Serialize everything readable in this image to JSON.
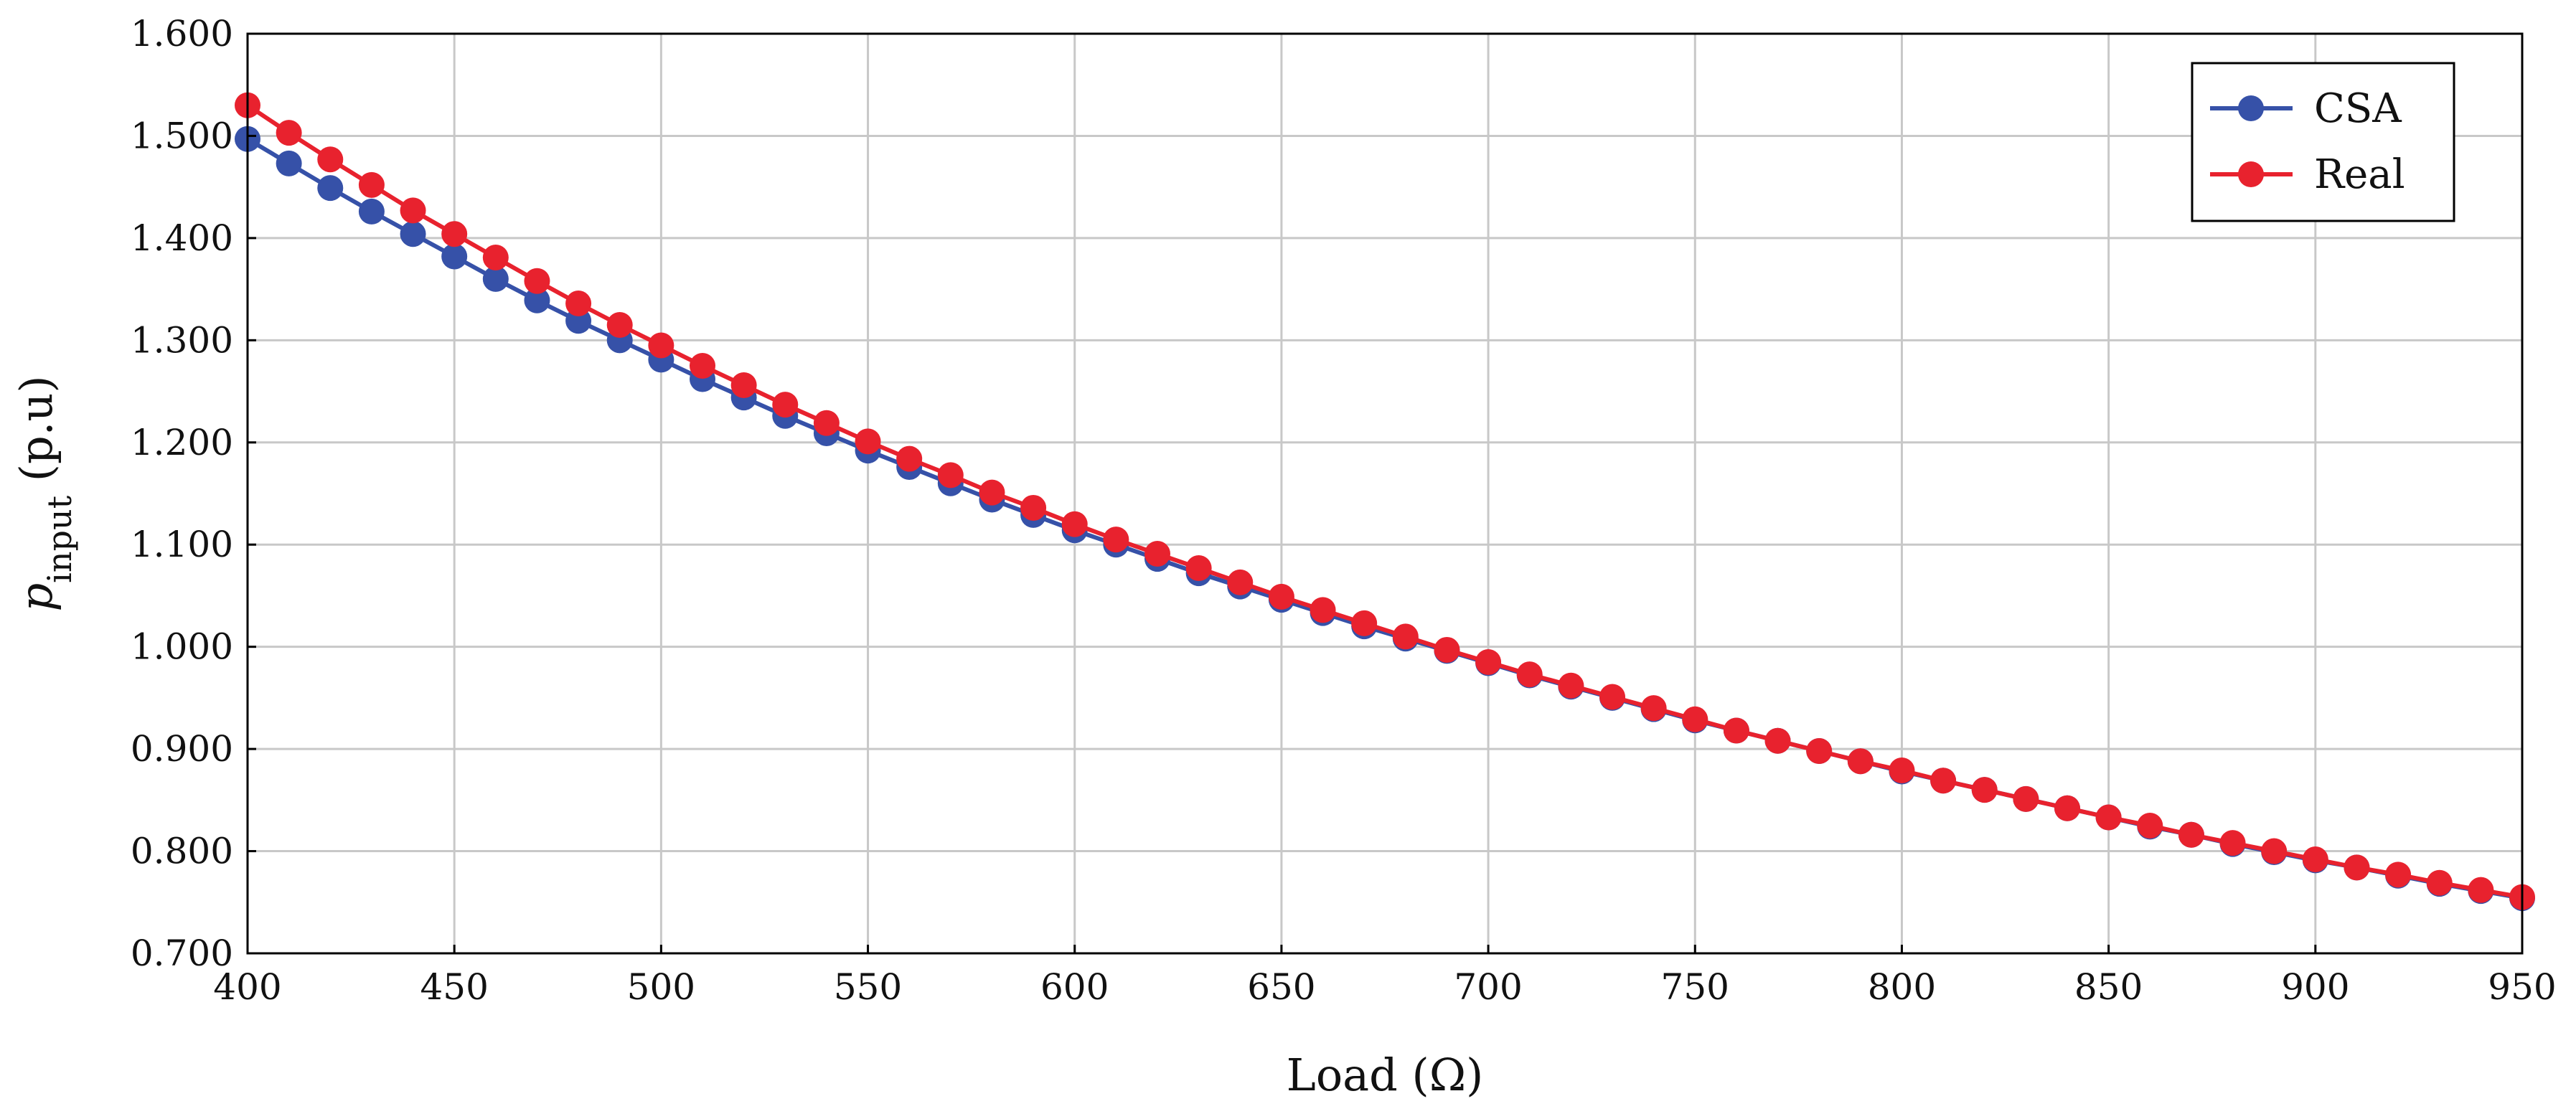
{
  "chart_data": {
    "type": "line",
    "title": "",
    "xlabel": "Load (Ω)",
    "ylabel": {
      "base": "p",
      "subscript": "input",
      "suffix": " (p.u)"
    },
    "xlim": [
      400,
      950
    ],
    "ylim": [
      0.7,
      1.6
    ],
    "x_ticks": [
      400,
      450,
      500,
      550,
      600,
      650,
      700,
      750,
      800,
      850,
      900,
      950
    ],
    "x_tick_labels": [
      "400",
      "450",
      "500",
      "550",
      "600",
      "650",
      "700",
      "750",
      "800",
      "850",
      "900",
      "950"
    ],
    "y_ticks": [
      0.7,
      0.8,
      0.9,
      1.0,
      1.1,
      1.2,
      1.3,
      1.4,
      1.5,
      1.6
    ],
    "y_tick_labels": [
      "0.700",
      "0.800",
      "0.900",
      "1.000",
      "1.100",
      "1.200",
      "1.300",
      "1.400",
      "1.500",
      "1.600"
    ],
    "grid": true,
    "legend_position": "top-right",
    "x": [
      400,
      410,
      420,
      430,
      440,
      450,
      460,
      470,
      480,
      490,
      500,
      510,
      520,
      530,
      540,
      550,
      560,
      570,
      580,
      590,
      600,
      610,
      620,
      630,
      640,
      650,
      660,
      670,
      680,
      690,
      700,
      710,
      720,
      730,
      740,
      750,
      760,
      770,
      780,
      790,
      800,
      810,
      820,
      830,
      840,
      850,
      860,
      870,
      880,
      890,
      900,
      910,
      920,
      930,
      940,
      950
    ],
    "series": [
      {
        "name": "CSA",
        "color": "#3651a8",
        "values": [
          1.497,
          1.473,
          1.449,
          1.426,
          1.404,
          1.382,
          1.36,
          1.339,
          1.319,
          1.3,
          1.281,
          1.262,
          1.244,
          1.226,
          1.209,
          1.192,
          1.176,
          1.16,
          1.144,
          1.129,
          1.114,
          1.1,
          1.086,
          1.072,
          1.059,
          1.046,
          1.033,
          1.02,
          1.008,
          0.996,
          0.984,
          0.972,
          0.961,
          0.95,
          0.939,
          0.928,
          0.918,
          0.908,
          0.898,
          0.888,
          0.878,
          0.869,
          0.86,
          0.851,
          0.842,
          0.833,
          0.824,
          0.816,
          0.807,
          0.799,
          0.791,
          0.784,
          0.776,
          0.768,
          0.761,
          0.754
        ]
      },
      {
        "name": "Real",
        "color": "#e8222e",
        "values": [
          1.53,
          1.503,
          1.477,
          1.452,
          1.427,
          1.404,
          1.381,
          1.358,
          1.336,
          1.315,
          1.295,
          1.275,
          1.256,
          1.237,
          1.219,
          1.201,
          1.184,
          1.168,
          1.151,
          1.136,
          1.12,
          1.105,
          1.091,
          1.077,
          1.063,
          1.049,
          1.036,
          1.023,
          1.01,
          0.997,
          0.985,
          0.973,
          0.962,
          0.951,
          0.94,
          0.929,
          0.918,
          0.908,
          0.898,
          0.888,
          0.879,
          0.869,
          0.86,
          0.851,
          0.842,
          0.833,
          0.825,
          0.816,
          0.808,
          0.8,
          0.792,
          0.784,
          0.777,
          0.769,
          0.762,
          0.755
        ]
      }
    ]
  }
}
